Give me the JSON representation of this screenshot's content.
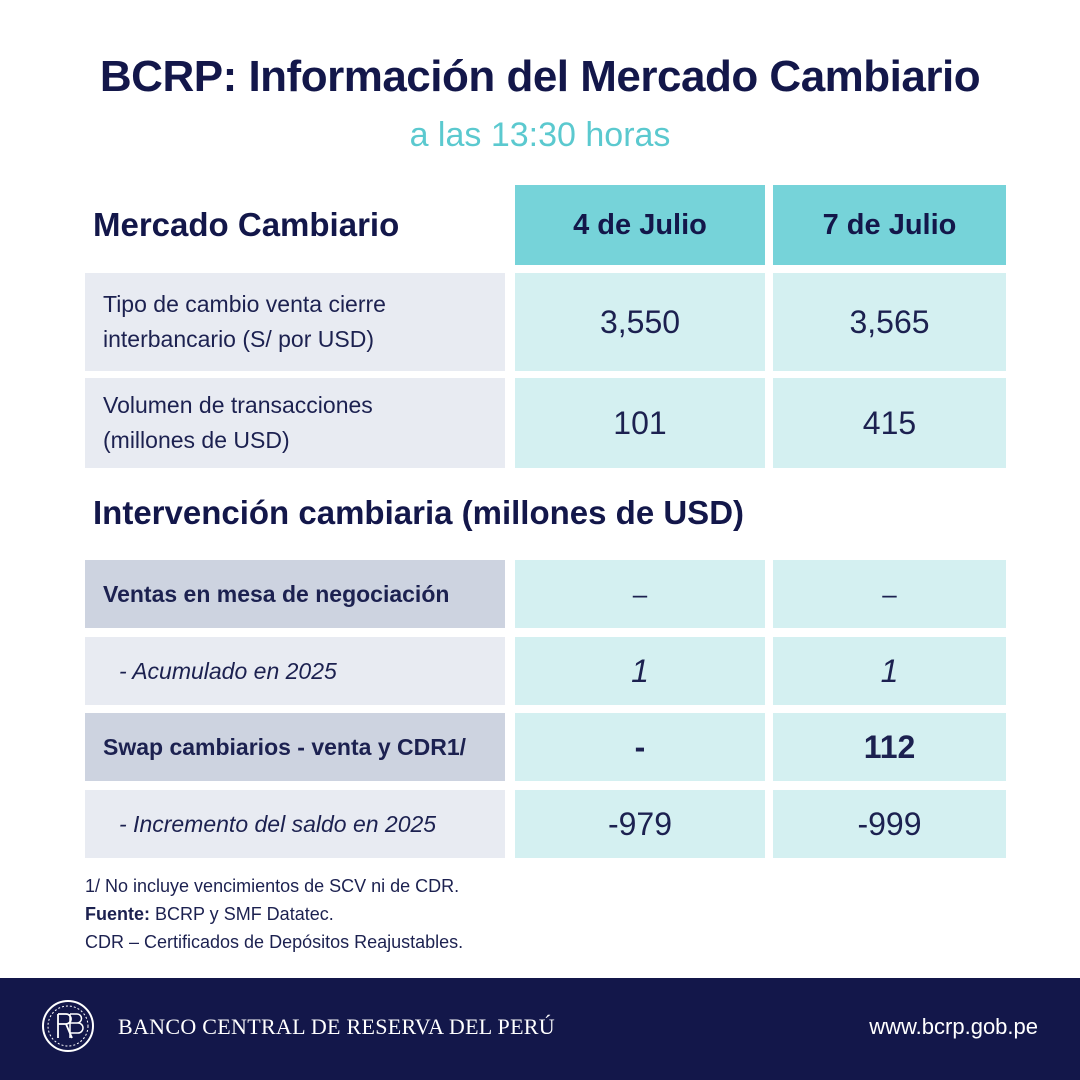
{
  "title": "BCRP: Información del Mercado Cambiario",
  "subtitle": "a las 13:30 horas",
  "market": {
    "heading": "Mercado Cambiario",
    "columns": [
      "4 de Julio",
      "7 de Julio"
    ],
    "rows": [
      {
        "label": "Tipo de cambio venta cierre interbancario (S/ por USD)",
        "values": [
          "3,550",
          "3,565"
        ]
      },
      {
        "label": "Volumen de transacciones (millones de USD)",
        "values": [
          "101",
          "415"
        ]
      }
    ]
  },
  "intervention": {
    "heading": "Intervención cambiaria (millones de USD)",
    "rows": [
      {
        "label": "Ventas en mesa de negociación",
        "values": [
          "–",
          "–"
        ]
      },
      {
        "label": "-  Acumulado en 2025",
        "values": [
          "1",
          "1"
        ]
      },
      {
        "label": "Swap cambiarios - venta y CDR1/",
        "values": [
          "-",
          "112"
        ]
      },
      {
        "label": "-  Incremento del saldo en 2025",
        "values": [
          "-979",
          "-999"
        ]
      }
    ]
  },
  "notes": {
    "note1": "1/ No incluye vencimientos de SCV ni de CDR.",
    "source_label": "Fuente:",
    "source_text": " BCRP y SMF Datatec.",
    "note3": "CDR – Certificados de Depósitos Reajustables."
  },
  "footer": {
    "logo_icon": "bcrp-seal-icon",
    "bank_name": "BANCO CENTRAL DE RESERVA DEL PERÚ",
    "website": "www.bcrp.gob.pe"
  },
  "colors": {
    "navy": "#13174a",
    "teal_header": "#76d3d9",
    "teal_cell": "#d4f0f1",
    "label_light": "#e8ebf2",
    "label_dark": "#cdd3e0",
    "subtitle": "#5bc9cf"
  }
}
